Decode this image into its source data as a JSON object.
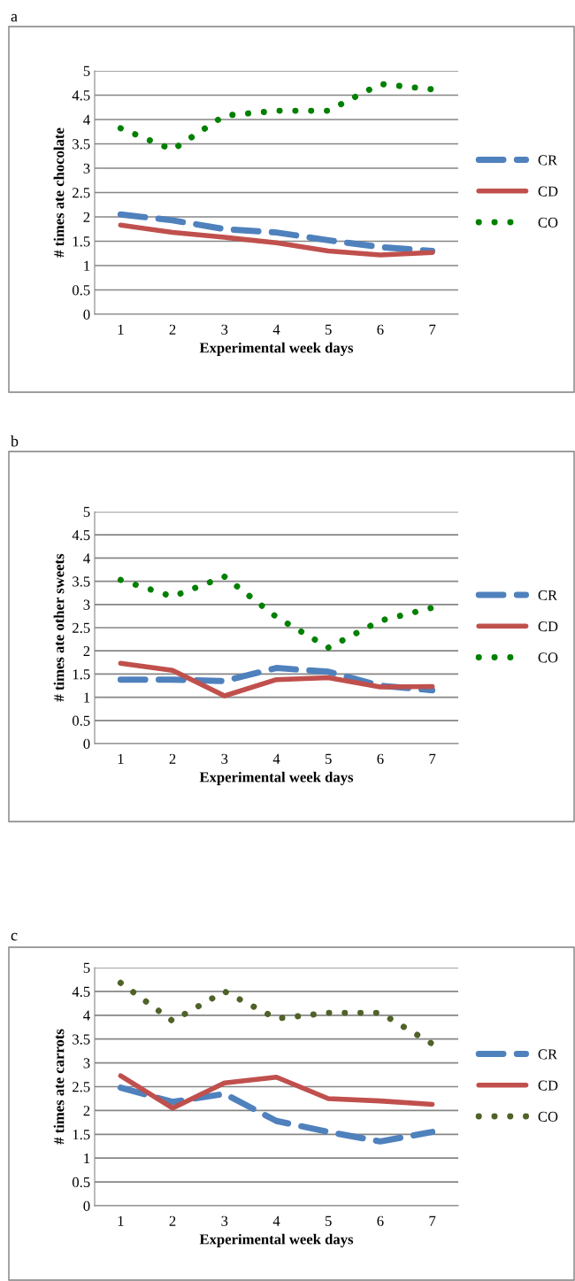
{
  "chart_data": [
    {
      "type": "line",
      "title": "a",
      "xlabel": "Experimental week days",
      "ylabel": "# times ate chocolate",
      "categories": [
        "1",
        "2",
        "3",
        "4",
        "5",
        "6",
        "7"
      ],
      "ylim": [
        0,
        5
      ],
      "yticks": [
        0,
        0.5,
        1,
        1.5,
        2,
        2.5,
        3,
        3.5,
        4,
        4.5,
        5
      ],
      "grid": "y",
      "legend": "right",
      "marker": "none",
      "series": [
        {
          "name": "CR",
          "color": "#4f81bd",
          "line_style": "dashed",
          "values": [
            2.05,
            1.93,
            1.75,
            1.68,
            1.52,
            1.38,
            1.3
          ]
        },
        {
          "name": "CD",
          "color": "#c0504d",
          "line_style": "solid",
          "values": [
            1.83,
            1.68,
            1.58,
            1.47,
            1.3,
            1.22,
            1.27
          ]
        },
        {
          "name": "CO",
          "color": "#008000",
          "line_style": "dotted",
          "values": [
            3.82,
            3.38,
            4.08,
            4.18,
            4.18,
            4.73,
            4.62
          ]
        }
      ]
    },
    {
      "type": "line",
      "title": "b",
      "xlabel": "Experimental week days",
      "ylabel": "# times ate other sweets",
      "categories": [
        "1",
        "2",
        "3",
        "4",
        "5",
        "6",
        "7"
      ],
      "ylim": [
        0,
        5
      ],
      "yticks": [
        0,
        0.5,
        1,
        1.5,
        2,
        2.5,
        3,
        3.5,
        4,
        4.5,
        5
      ],
      "grid": "y",
      "legend": "right",
      "marker": "none",
      "series": [
        {
          "name": "CR",
          "color": "#4f81bd",
          "line_style": "dashed",
          "values": [
            1.38,
            1.38,
            1.35,
            1.63,
            1.55,
            1.25,
            1.15
          ]
        },
        {
          "name": "CD",
          "color": "#c0504d",
          "line_style": "solid",
          "values": [
            1.73,
            1.58,
            1.03,
            1.38,
            1.42,
            1.22,
            1.23
          ]
        },
        {
          "name": "CO",
          "color": "#008000",
          "line_style": "dotted",
          "values": [
            3.53,
            3.17,
            3.6,
            2.73,
            2.07,
            2.65,
            2.93
          ]
        }
      ]
    },
    {
      "type": "line",
      "title": "c",
      "xlabel": "Experimental week days",
      "ylabel": "# times ate carrots",
      "categories": [
        "1",
        "2",
        "3",
        "4",
        "5",
        "6",
        "7"
      ],
      "ylim": [
        0,
        5
      ],
      "yticks": [
        0,
        0.5,
        1,
        1.5,
        2,
        2.5,
        3,
        3.5,
        4,
        4.5,
        5
      ],
      "grid": "y",
      "legend": "right",
      "marker": "none",
      "series": [
        {
          "name": "CR",
          "color": "#4f81bd",
          "line_style": "dashed",
          "values": [
            2.48,
            2.18,
            2.35,
            1.78,
            1.55,
            1.35,
            1.55
          ]
        },
        {
          "name": "CD",
          "color": "#c0504d",
          "line_style": "solid",
          "values": [
            2.73,
            2.05,
            2.58,
            2.7,
            2.25,
            2.2,
            2.13
          ]
        },
        {
          "name": "CO",
          "color": "#4f6228",
          "line_style": "dotted",
          "values": [
            4.68,
            3.88,
            4.5,
            3.93,
            4.05,
            4.05,
            3.4
          ]
        }
      ]
    }
  ]
}
